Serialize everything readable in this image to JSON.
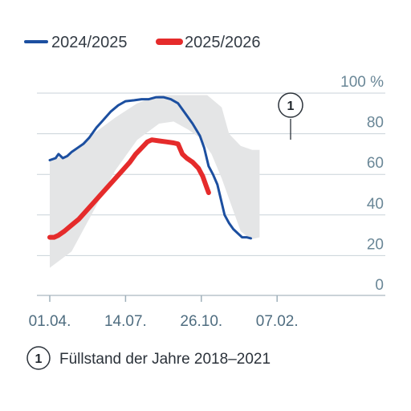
{
  "chart_data": {
    "type": "line",
    "title": "",
    "xlabel": "",
    "ylabel": "",
    "ylim": [
      0,
      100
    ],
    "y_unit": "%",
    "y_ticks": [
      {
        "value": 100,
        "label": "100 %"
      },
      {
        "value": 80,
        "label": "80"
      },
      {
        "value": 60,
        "label": "60"
      },
      {
        "value": 40,
        "label": "40"
      },
      {
        "value": 20,
        "label": "20"
      },
      {
        "value": 0,
        "label": "0"
      }
    ],
    "x_ticks": [
      {
        "day": 0,
        "label": "01.04."
      },
      {
        "day": 104,
        "label": "14.07."
      },
      {
        "day": 208,
        "label": "26.10."
      },
      {
        "day": 312,
        "label": "07.02."
      }
    ],
    "x_range_days": [
      -15,
      325
    ],
    "grid": true,
    "legend_position": "top-left",
    "series": [
      {
        "name": "2024/2025",
        "color": "#1c4fa0",
        "points": [
          [
            0,
            67
          ],
          [
            8,
            68
          ],
          [
            12,
            70
          ],
          [
            18,
            68
          ],
          [
            24,
            69
          ],
          [
            30,
            71
          ],
          [
            38,
            73
          ],
          [
            46,
            75
          ],
          [
            54,
            78
          ],
          [
            64,
            83
          ],
          [
            74,
            87
          ],
          [
            84,
            91
          ],
          [
            94,
            94
          ],
          [
            104,
            96
          ],
          [
            116,
            96.5
          ],
          [
            126,
            97
          ],
          [
            136,
            97
          ],
          [
            146,
            98
          ],
          [
            156,
            98
          ],
          [
            166,
            97
          ],
          [
            176,
            95
          ],
          [
            186,
            90
          ],
          [
            196,
            85
          ],
          [
            206,
            79
          ],
          [
            212,
            73
          ],
          [
            218,
            64
          ],
          [
            224,
            60
          ],
          [
            230,
            55
          ],
          [
            236,
            46
          ],
          [
            240,
            40
          ],
          [
            246,
            36
          ],
          [
            252,
            33
          ],
          [
            258,
            31
          ],
          [
            264,
            29
          ],
          [
            270,
            29
          ],
          [
            276,
            28.5
          ]
        ]
      },
      {
        "name": "2025/2026",
        "color": "#e52b2b",
        "points": [
          [
            0,
            29
          ],
          [
            6,
            29
          ],
          [
            12,
            30
          ],
          [
            20,
            32
          ],
          [
            30,
            35
          ],
          [
            40,
            38
          ],
          [
            50,
            42
          ],
          [
            60,
            46
          ],
          [
            70,
            50
          ],
          [
            80,
            54
          ],
          [
            90,
            58
          ],
          [
            100,
            62
          ],
          [
            110,
            66
          ],
          [
            118,
            70
          ],
          [
            126,
            73
          ],
          [
            134,
            76
          ],
          [
            140,
            77
          ],
          [
            150,
            76.5
          ],
          [
            160,
            76
          ],
          [
            170,
            75.5
          ],
          [
            176,
            75
          ],
          [
            182,
            70
          ],
          [
            188,
            68
          ],
          [
            196,
            66
          ],
          [
            204,
            63
          ],
          [
            210,
            59
          ],
          [
            214,
            55
          ],
          [
            218,
            51
          ]
        ]
      }
    ],
    "band": {
      "label": "Füllstand der Jahre 2018–2021",
      "marker": "1",
      "color": "#e4e5e6",
      "upper": [
        [
          0,
          67
        ],
        [
          30,
          70
        ],
        [
          60,
          80
        ],
        [
          90,
          88
        ],
        [
          120,
          95
        ],
        [
          150,
          99
        ],
        [
          176,
          99
        ],
        [
          200,
          99
        ],
        [
          216,
          99
        ],
        [
          236,
          93
        ],
        [
          246,
          80
        ],
        [
          262,
          74
        ],
        [
          278,
          72
        ],
        [
          288,
          72
        ]
      ],
      "lower": [
        [
          288,
          29
        ],
        [
          276,
          28
        ],
        [
          262,
          32
        ],
        [
          250,
          44
        ],
        [
          236,
          58
        ],
        [
          222,
          70
        ],
        [
          206,
          78
        ],
        [
          190,
          82
        ],
        [
          170,
          86
        ],
        [
          150,
          85
        ],
        [
          120,
          77
        ],
        [
          90,
          62
        ],
        [
          60,
          42
        ],
        [
          30,
          22
        ],
        [
          0,
          14
        ]
      ]
    }
  }
}
